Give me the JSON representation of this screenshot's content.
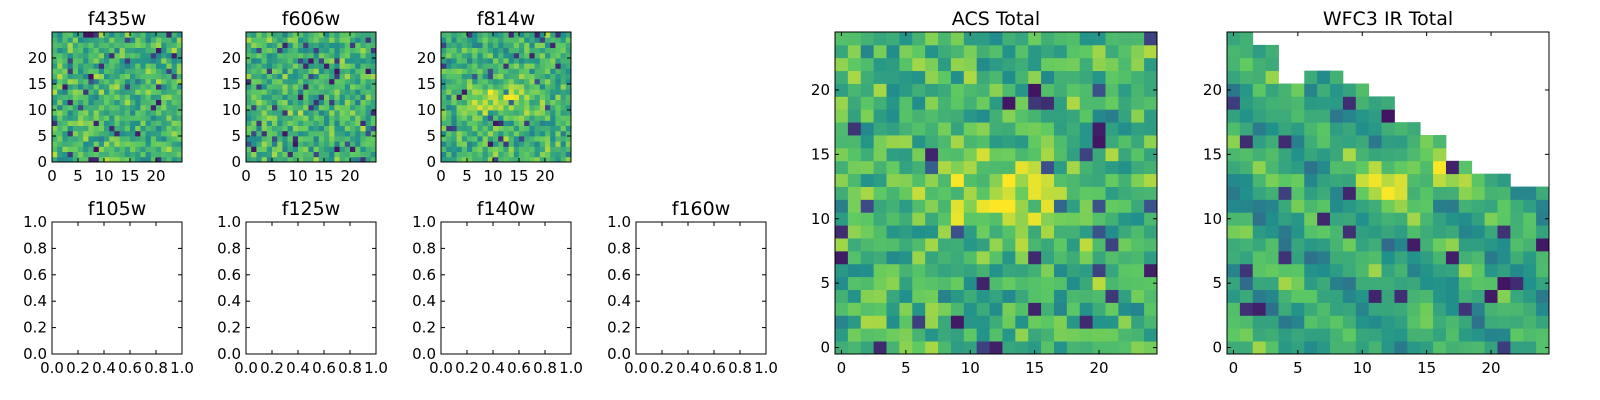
{
  "figure": {
    "description_free": true
  },
  "chart_data": [
    {
      "type": "heatmap",
      "title": "f435w",
      "xticks": [
        "0",
        "5",
        "10",
        "15",
        "20"
      ],
      "yticks": [
        "0",
        "5",
        "10",
        "15",
        "20"
      ],
      "xlim": [
        0,
        25
      ],
      "ylim": [
        0,
        25
      ],
      "grid_size": 25,
      "pattern": "noise",
      "seed": 11
    },
    {
      "type": "heatmap",
      "title": "f606w",
      "xticks": [
        "0",
        "5",
        "10",
        "15",
        "20"
      ],
      "yticks": [
        "0",
        "5",
        "10",
        "15",
        "20"
      ],
      "xlim": [
        0,
        25
      ],
      "ylim": [
        0,
        25
      ],
      "grid_size": 25,
      "pattern": "noise",
      "seed": 23
    },
    {
      "type": "heatmap",
      "title": "f814w",
      "xticks": [
        "0",
        "5",
        "10",
        "15",
        "20"
      ],
      "yticks": [
        "0",
        "5",
        "10",
        "15",
        "20"
      ],
      "xlim": [
        0,
        25
      ],
      "ylim": [
        0,
        25
      ],
      "grid_size": 25,
      "pattern": "noise_blob",
      "seed": 37
    },
    {
      "type": "empty",
      "title": "f105w",
      "xticks": [
        "0.0",
        "0.2",
        "0.4",
        "0.6",
        "0.8",
        "1.0"
      ],
      "yticks": [
        "0.0",
        "0.2",
        "0.4",
        "0.6",
        "0.8",
        "1.0"
      ],
      "xlim": [
        0,
        1
      ],
      "ylim": [
        0,
        1
      ]
    },
    {
      "type": "empty",
      "title": "f125w",
      "xticks": [
        "0.0",
        "0.2",
        "0.4",
        "0.6",
        "0.8",
        "1.0"
      ],
      "yticks": [
        "0.0",
        "0.2",
        "0.4",
        "0.6",
        "0.8",
        "1.0"
      ],
      "xlim": [
        0,
        1
      ],
      "ylim": [
        0,
        1
      ]
    },
    {
      "type": "empty",
      "title": "f140w",
      "xticks": [
        "0.0",
        "0.2",
        "0.4",
        "0.6",
        "0.8",
        "1.0"
      ],
      "yticks": [
        "0.0",
        "0.2",
        "0.4",
        "0.6",
        "0.8",
        "1.0"
      ],
      "xlim": [
        0,
        1
      ],
      "ylim": [
        0,
        1
      ]
    },
    {
      "type": "empty",
      "title": "f160w",
      "xticks": [
        "0.0",
        "0.2",
        "0.4",
        "0.6",
        "0.8",
        "1.0"
      ],
      "yticks": [
        "0.0",
        "0.2",
        "0.4",
        "0.6",
        "0.8",
        "1.0"
      ],
      "xlim": [
        0,
        1
      ],
      "ylim": [
        0,
        1
      ]
    },
    {
      "type": "heatmap",
      "title": "ACS Total",
      "xticks": [
        "0",
        "5",
        "10",
        "15",
        "20"
      ],
      "yticks": [
        "0",
        "5",
        "10",
        "15",
        "20"
      ],
      "xlim": [
        -0.5,
        24.5
      ],
      "ylim": [
        -0.5,
        24.5
      ],
      "grid_size": 25,
      "pattern": "noise_blob",
      "seed": 53
    },
    {
      "type": "heatmap",
      "title": "WFC3 IR Total",
      "xticks": [
        "0",
        "5",
        "10",
        "15",
        "20"
      ],
      "yticks": [
        "0",
        "5",
        "10",
        "15",
        "20"
      ],
      "xlim": [
        -0.5,
        24.5
      ],
      "ylim": [
        -0.5,
        24.5
      ],
      "grid_size": 25,
      "pattern": "blocky_masked",
      "seed": 71
    }
  ],
  "colormap": [
    "#440154",
    "#3b528b",
    "#21918c",
    "#5ec962",
    "#fde725"
  ]
}
